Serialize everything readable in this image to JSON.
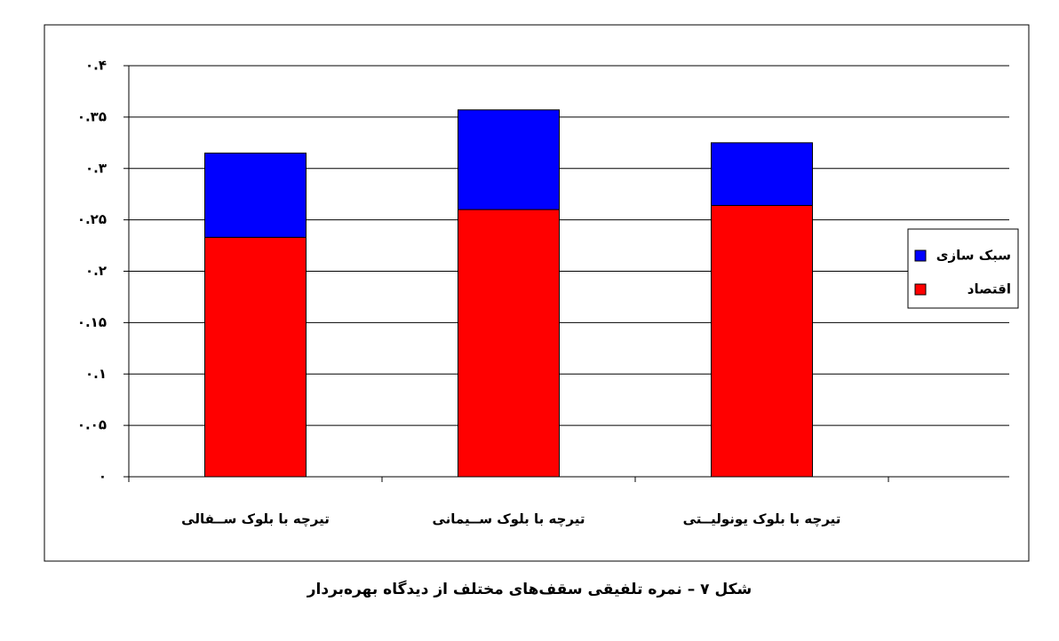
{
  "chart_data": {
    "type": "stacked_bar",
    "caption": "شکل ۷ – نمره تلفیقی سقف‌های مختلف از دیدگاه بهره‌بردار",
    "categories": [
      "تیرچه با بلوک ســفالی",
      "تیرچه با بلوک ســیمانی",
      "تیرچه با بلوک یونولیــتی"
    ],
    "series": [
      {
        "name": "اقتصاد",
        "color": "#ff0000",
        "values": [
          0.233,
          0.26,
          0.264
        ]
      },
      {
        "name": "سبک سازی",
        "color": "#0000ff",
        "values": [
          0.082,
          0.097,
          0.061
        ]
      }
    ],
    "ylim": [
      0,
      0.4
    ],
    "yticks": [
      {
        "value": 0,
        "label": "۰"
      },
      {
        "value": 0.05,
        "label": "۰.۰۵"
      },
      {
        "value": 0.1,
        "label": "۰.۱"
      },
      {
        "value": 0.15,
        "label": "۰.۱۵"
      },
      {
        "value": 0.2,
        "label": "۰.۲"
      },
      {
        "value": 0.25,
        "label": "۰.۲۵"
      },
      {
        "value": 0.3,
        "label": "۰.۳"
      },
      {
        "value": 0.35,
        "label": "۰.۳۵"
      },
      {
        "value": 0.4,
        "label": "۰.۴"
      }
    ],
    "grid": true,
    "legend": "right"
  }
}
